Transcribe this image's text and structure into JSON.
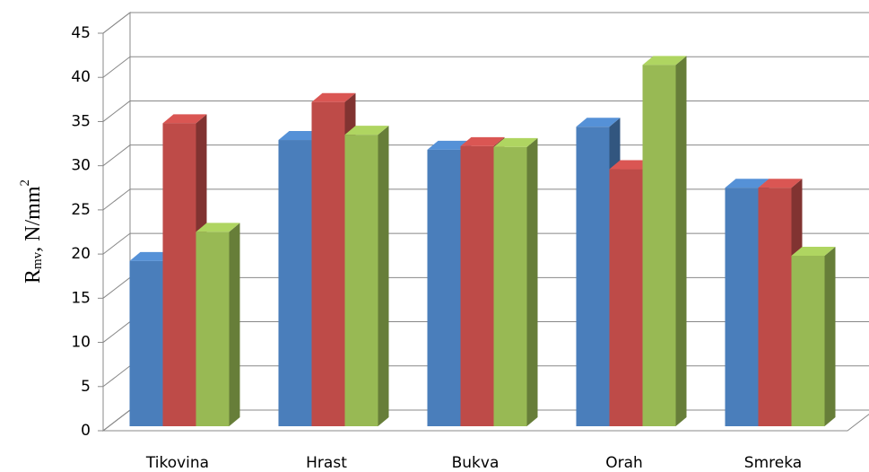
{
  "chart_data": {
    "type": "bar3d",
    "ylabel": [
      "R",
      "mv",
      ", N/mm",
      "2"
    ],
    "categories": [
      "Tikovina",
      "Hrast",
      "Bukva",
      "Orah",
      "Smreka"
    ],
    "series": [
      {
        "color": "#4a7ebb",
        "values": [
          18.7,
          32.4,
          31.3,
          33.9,
          27
        ]
      },
      {
        "color": "#be4b48",
        "values": [
          34.3,
          36.7,
          31.7,
          29.1,
          27
        ]
      },
      {
        "color": "#98b954",
        "values": [
          22,
          33,
          31.6,
          40.9,
          19.3
        ]
      }
    ],
    "ylim": [
      0,
      45
    ],
    "yticks": [
      0,
      5,
      10,
      15,
      20,
      25,
      30,
      35,
      40,
      45
    ],
    "grid": true
  }
}
